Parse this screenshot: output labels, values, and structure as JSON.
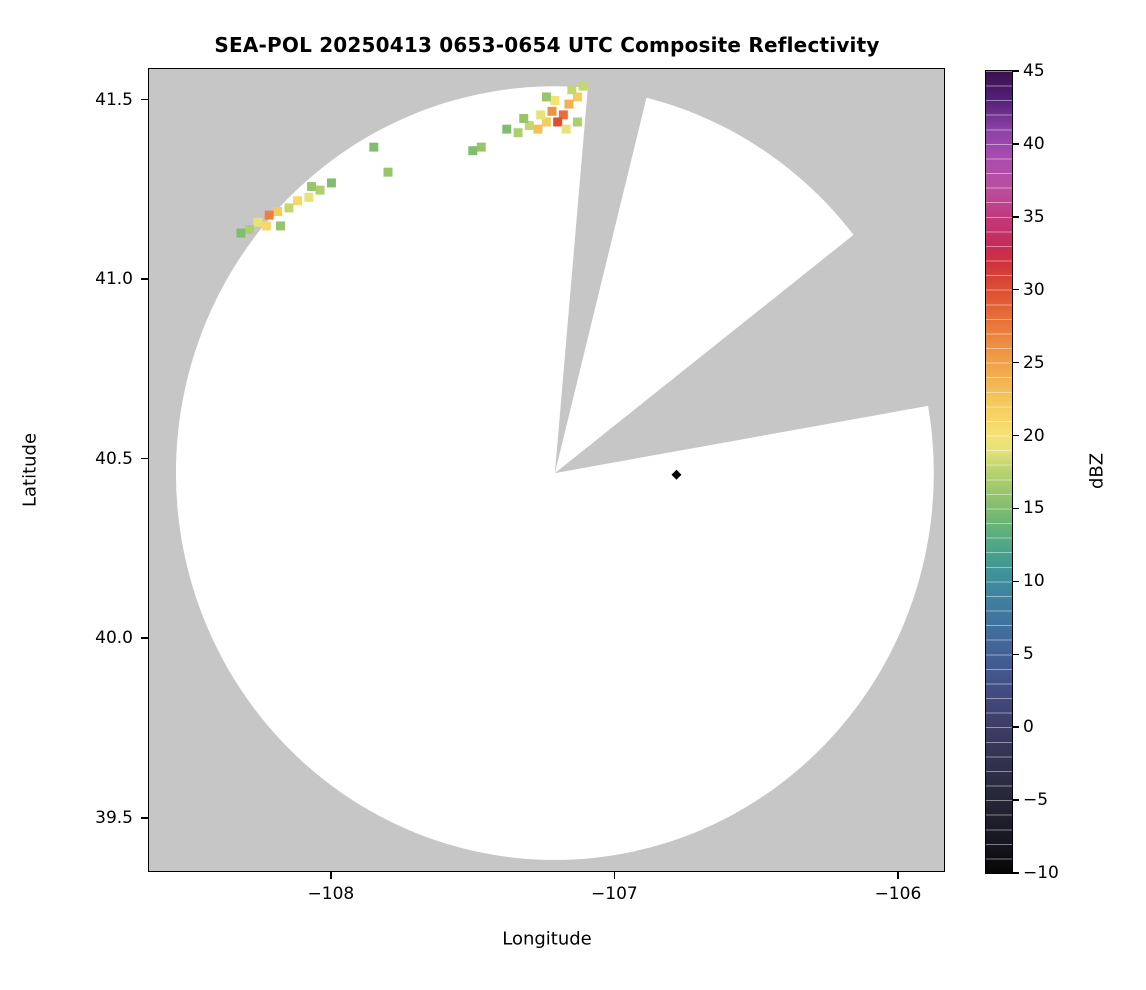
{
  "figure": {
    "background": "#ffffff"
  },
  "chart_data": {
    "type": "heatmap",
    "title": "SEA-POL 20250413 0653-0654 UTC Composite Reflectivity",
    "xlabel": "Longitude",
    "ylabel": "Latitude",
    "xlim": [
      -108.645,
      -105.834
    ],
    "ylim": [
      39.349,
      41.588
    ],
    "xticks": [
      -108,
      -107,
      -106
    ],
    "xtick_labels": [
      "−108",
      "−107",
      "−106"
    ],
    "yticks": [
      39.5,
      40.0,
      40.5,
      41.0,
      41.5
    ],
    "ytick_labels": [
      "39.5",
      "40.0",
      "40.5",
      "41.0",
      "41.5"
    ],
    "grid": false,
    "background_color": "#c6c6c6",
    "coverage": {
      "center_lon": -107.21,
      "center_lat": 40.46,
      "radius_lon": 1.34,
      "radius_lat": 1.08,
      "fill": "#ffffff"
    },
    "blocked_sectors_deg": [
      [
        5,
        14
      ],
      [
        52,
        80
      ]
    ],
    "radar_marker": {
      "lon": -106.78,
      "lat": 40.455,
      "shape": "diamond",
      "color": "#000000"
    },
    "colorbar": {
      "label": "dBZ",
      "min": -10,
      "max": 45,
      "ticks": [
        -10,
        -5,
        0,
        5,
        10,
        15,
        20,
        25,
        30,
        35,
        40,
        45
      ],
      "tick_labels": [
        "−10",
        "−5",
        "0",
        "5",
        "10",
        "15",
        "20",
        "25",
        "30",
        "35",
        "40",
        "45"
      ],
      "segment_step_dbz": 1
    },
    "colormap_stops": [
      [
        -10,
        "#060606"
      ],
      [
        -8,
        "#16161f"
      ],
      [
        -6,
        "#21212f"
      ],
      [
        -4,
        "#2b2b40"
      ],
      [
        -2,
        "#343352"
      ],
      [
        0,
        "#3d3d66"
      ],
      [
        2,
        "#42497e"
      ],
      [
        4,
        "#43598f"
      ],
      [
        6,
        "#41699a"
      ],
      [
        8,
        "#3f7a9f"
      ],
      [
        10,
        "#3d8d9d"
      ],
      [
        12,
        "#48a28c"
      ],
      [
        14,
        "#6ab475"
      ],
      [
        16,
        "#97c56c"
      ],
      [
        18,
        "#c4d76f"
      ],
      [
        19,
        "#e7e27b"
      ],
      [
        20,
        "#f5e273"
      ],
      [
        22,
        "#f5cd5e"
      ],
      [
        24,
        "#f2b04f"
      ],
      [
        26,
        "#ee9243"
      ],
      [
        28,
        "#e77039"
      ],
      [
        30,
        "#dd4f33"
      ],
      [
        32,
        "#cf3040"
      ],
      [
        33,
        "#c62b57"
      ],
      [
        35,
        "#c03a7d"
      ],
      [
        37,
        "#bb4f9f"
      ],
      [
        39,
        "#a94cb0"
      ],
      [
        41,
        "#8c41a6"
      ],
      [
        43,
        "#542078"
      ],
      [
        45,
        "#38104d"
      ]
    ],
    "cells_units": "lon, lat, dBZ",
    "cells": [
      [
        -107.13,
        41.51,
        22
      ],
      [
        -107.15,
        41.53,
        18
      ],
      [
        -107.16,
        41.49,
        24
      ],
      [
        -107.18,
        41.46,
        28
      ],
      [
        -107.2,
        41.44,
        30
      ],
      [
        -107.22,
        41.47,
        26
      ],
      [
        -107.24,
        41.44,
        22
      ],
      [
        -107.21,
        41.5,
        20
      ],
      [
        -107.26,
        41.46,
        19
      ],
      [
        -107.27,
        41.42,
        23
      ],
      [
        -107.3,
        41.43,
        18
      ],
      [
        -107.32,
        41.45,
        16
      ],
      [
        -107.34,
        41.41,
        17
      ],
      [
        -107.38,
        41.42,
        15
      ],
      [
        -107.17,
        41.42,
        19
      ],
      [
        -107.13,
        41.44,
        17
      ],
      [
        -107.11,
        41.54,
        18
      ],
      [
        -107.24,
        41.51,
        16
      ],
      [
        -107.47,
        41.37,
        16
      ],
      [
        -107.5,
        41.36,
        15
      ],
      [
        -107.85,
        41.37,
        15
      ],
      [
        -107.8,
        41.3,
        16
      ],
      [
        -108.0,
        41.27,
        15
      ],
      [
        -108.04,
        41.25,
        17
      ],
      [
        -108.07,
        41.26,
        16
      ],
      [
        -108.08,
        41.23,
        19
      ],
      [
        -108.12,
        41.22,
        21
      ],
      [
        -108.15,
        41.2,
        18
      ],
      [
        -108.19,
        41.19,
        22
      ],
      [
        -108.22,
        41.18,
        27
      ],
      [
        -108.23,
        41.15,
        21
      ],
      [
        -108.26,
        41.16,
        19
      ],
      [
        -108.29,
        41.14,
        17
      ],
      [
        -108.32,
        41.13,
        15
      ],
      [
        -108.18,
        41.15,
        16
      ]
    ]
  }
}
